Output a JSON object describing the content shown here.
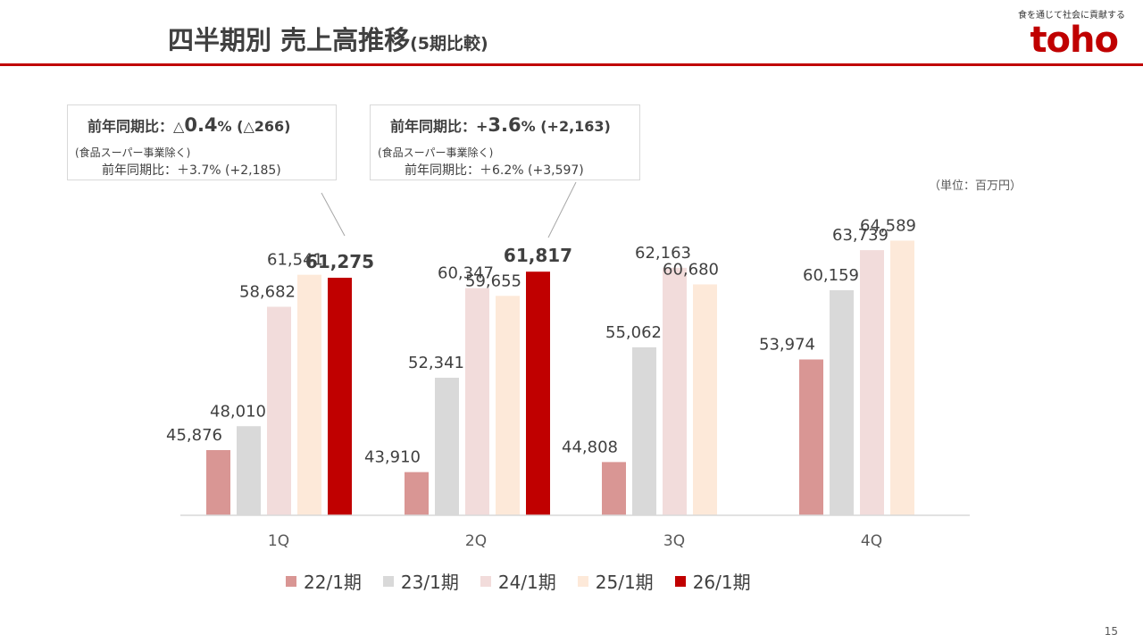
{
  "header": {
    "title": "四半期別 売上高推移",
    "title_sub": "(5期比較)",
    "tagline": "食を通じて社会に貢献する",
    "logo": "toho"
  },
  "callouts": [
    {
      "label": "前年同期比：",
      "value_prefix": "△",
      "value_big": "0.4",
      "value_suffix": "% (△266)",
      "note": "(食品スーパー事業除く)",
      "sub": "前年同期比：＋3.7% (+2,185)"
    },
    {
      "label": "前年同期比：",
      "value_prefix": "+",
      "value_big": "3.6",
      "value_suffix": "% (+2,163)",
      "note": "(食品スーパー事業除く)",
      "sub": "前年同期比：＋6.2% (+3,597)"
    }
  ],
  "unit": "（単位：百万円）",
  "page_number": "15",
  "chart_data": {
    "type": "bar",
    "categories": [
      "1Q",
      "2Q",
      "3Q",
      "4Q"
    ],
    "series": [
      {
        "name": "22/1期",
        "color": "#d99694",
        "values": [
          45876,
          43910,
          44808,
          53974
        ],
        "labels": [
          "45,876",
          "43,910",
          "44,808",
          "53,974"
        ]
      },
      {
        "name": "23/1期",
        "color": "#d9d9d9",
        "values": [
          48010,
          52341,
          55062,
          60159
        ],
        "labels": [
          "48,010",
          "52,341",
          "55,062",
          "60,159"
        ]
      },
      {
        "name": "24/1期",
        "color": "#f2dcdb",
        "values": [
          58682,
          60347,
          62163,
          63739
        ],
        "labels": [
          "58,682",
          "60,347",
          "62,163",
          "63,739"
        ]
      },
      {
        "name": "25/1期",
        "color": "#fde9d9",
        "values": [
          61541,
          59655,
          60680,
          64589
        ],
        "labels": [
          "61,541",
          "59,655",
          "60,680",
          "64,589"
        ]
      },
      {
        "name": "26/1期",
        "color": "#c00000",
        "values": [
          61275,
          61817,
          null,
          null
        ],
        "labels": [
          "61,275",
          "61,817",
          "",
          ""
        ]
      }
    ]
  }
}
